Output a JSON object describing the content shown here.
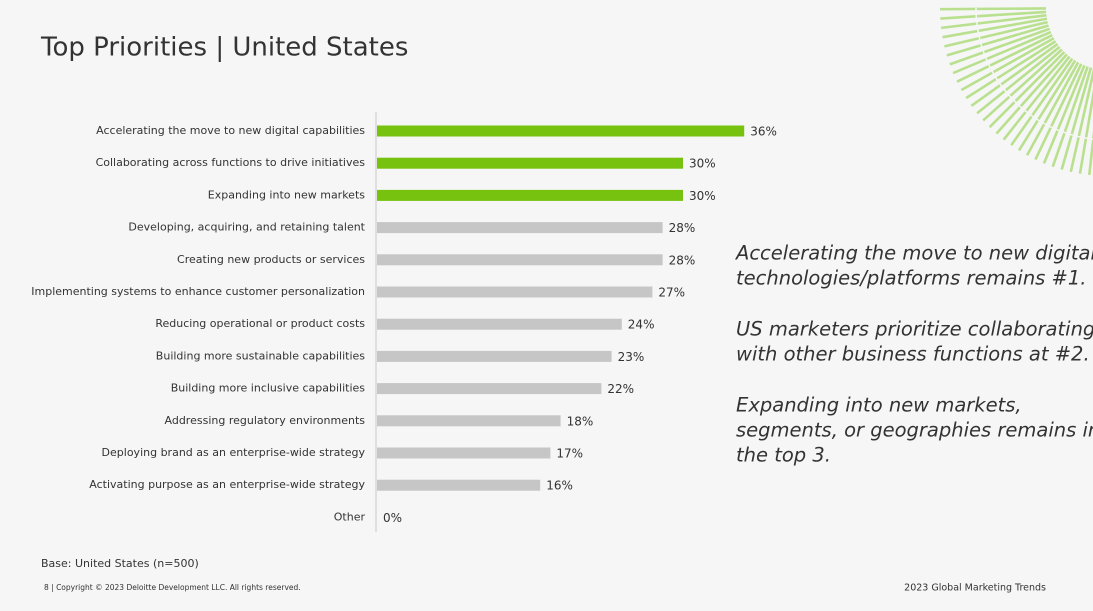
{
  "chart_data": {
    "type": "bar",
    "orientation": "horizontal",
    "title": "Top Priorities | United States",
    "categories": [
      "Accelerating the move to new digital capabilities",
      "Collaborating across functions to drive initiatives",
      "Expanding into new markets",
      "Developing, acquiring, and retaining talent",
      "Creating new products or services",
      "Implementing systems to enhance customer personalization",
      "Reducing operational or product costs",
      "Building more sustainable capabilities",
      "Building more inclusive capabilities",
      "Addressing regulatory environments",
      "Deploying brand as an enterprise-wide strategy",
      "Activating purpose as an enterprise-wide strategy",
      "Other"
    ],
    "values": [
      36,
      30,
      30,
      28,
      28,
      27,
      24,
      23,
      22,
      18,
      17,
      16,
      0
    ],
    "value_labels": [
      "36%",
      "30%",
      "30%",
      "28%",
      "28%",
      "27%",
      "24%",
      "23%",
      "22%",
      "18%",
      "17%",
      "16%",
      "0%"
    ],
    "colors": [
      "#76c20e",
      "#76c20e",
      "#76c20e",
      "#c6c6c6",
      "#c6c6c6",
      "#c6c6c6",
      "#c6c6c6",
      "#c6c6c6",
      "#c6c6c6",
      "#c6c6c6",
      "#c6c6c6",
      "#c6c6c6",
      "#c6c6c6"
    ],
    "notes": [
      [
        "Accelerating the move to new digital",
        "technologies/platforms remains #1."
      ],
      [
        "US marketers prioritize collaborating",
        "with other business functions at #2."
      ],
      [
        "Expanding into new markets,",
        "segments, or geographies remains in",
        "the top 3."
      ]
    ],
    "base": "Base: United States (n=500)",
    "footer_left": "8  |  Copyright © 2023 Deloitte Development LLC. All rights reserved.",
    "footer_right": "2023 Global Marketing Trends"
  }
}
